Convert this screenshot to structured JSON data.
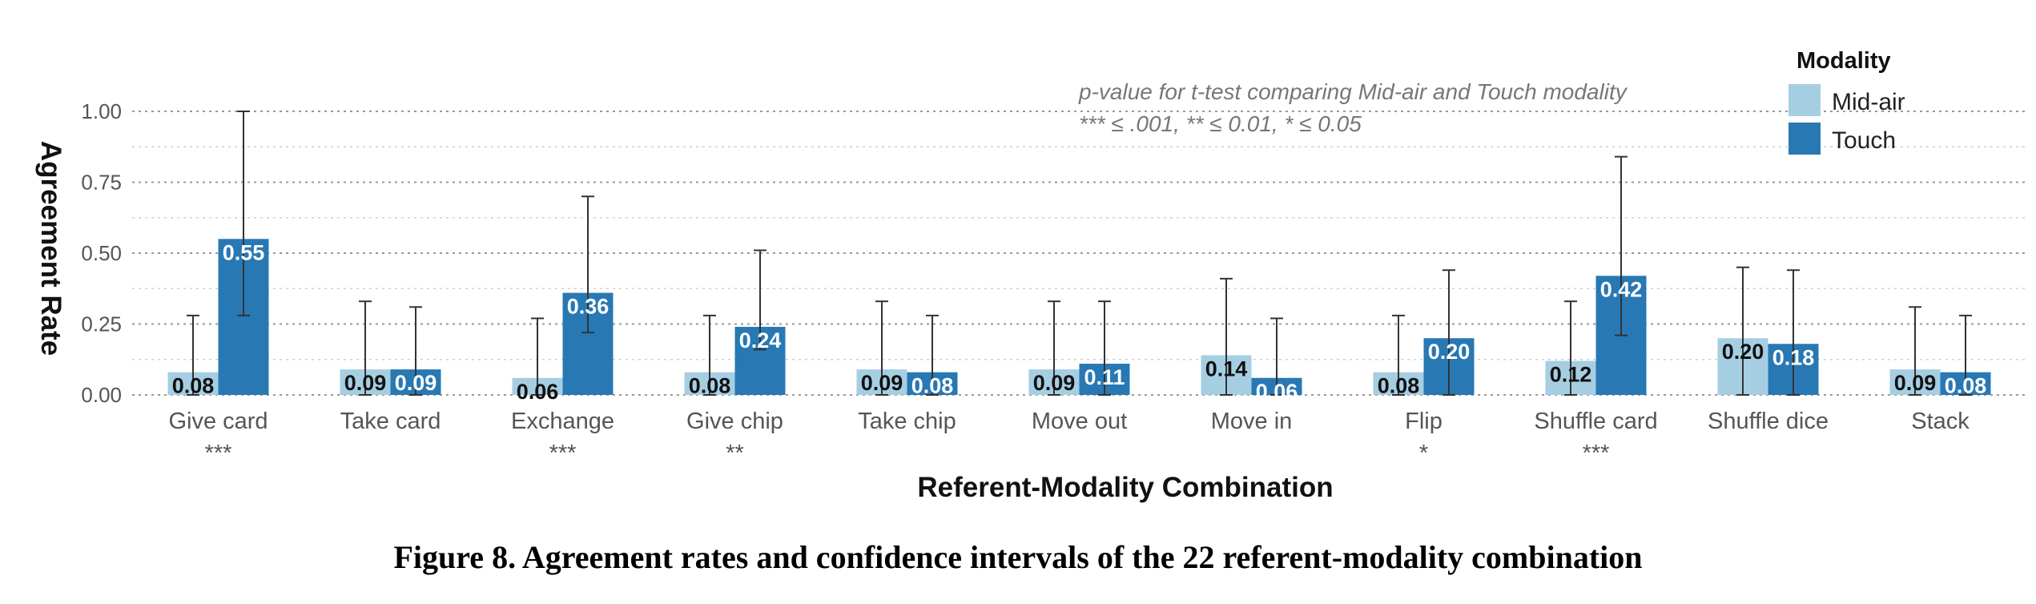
{
  "caption": "Figure 8. Agreement rates and confidence intervals of the 22 referent-modality combination",
  "chart_data": {
    "type": "bar",
    "xlabel": "Referent-Modality Combination",
    "ylabel": "Agreement Rate",
    "ylim": [
      0,
      1.05
    ],
    "yticks": [
      "0.00",
      "0.25",
      "0.50",
      "0.75",
      "1.00"
    ],
    "grid": true,
    "legend": {
      "title": "Modality",
      "placement": "top-right"
    },
    "categories": [
      "Give card",
      "Take card",
      "Exchange",
      "Give chip",
      "Take chip",
      "Move out",
      "Move in",
      "Flip",
      "Shuffle card",
      "Shuffle dice",
      "Stack"
    ],
    "significance": [
      "***",
      "",
      "***",
      "**",
      "",
      "",
      "",
      "*",
      "***",
      "",
      ""
    ],
    "series": [
      {
        "name": "Mid-air",
        "color": "#a6cee3",
        "values": [
          0.08,
          0.09,
          0.06,
          0.08,
          0.09,
          0.09,
          0.14,
          0.08,
          0.12,
          0.2,
          0.09
        ],
        "labels": [
          "0.08",
          "0.09",
          "0.06",
          "0.08",
          "0.09",
          "0.09",
          "0.14",
          "0.08",
          "0.12",
          "0.20",
          "0.09"
        ],
        "ci_low": [
          0.0,
          0.0,
          0.0,
          0.0,
          0.0,
          0.0,
          0.0,
          0.0,
          0.0,
          0.0,
          0.0
        ],
        "ci_high": [
          0.28,
          0.33,
          0.27,
          0.28,
          0.33,
          0.33,
          0.41,
          0.28,
          0.33,
          0.45,
          0.31
        ]
      },
      {
        "name": "Touch",
        "color": "#2878b4",
        "values": [
          0.55,
          0.09,
          0.36,
          0.24,
          0.08,
          0.11,
          0.06,
          0.2,
          0.42,
          0.18,
          0.08
        ],
        "labels": [
          "0.55",
          "0.09",
          "0.36",
          "0.24",
          "0.08",
          "0.11",
          "0.06",
          "0.20",
          "0.42",
          "0.18",
          "0.08"
        ],
        "ci_low": [
          0.28,
          0.0,
          0.22,
          0.16,
          0.0,
          0.0,
          0.0,
          0.0,
          0.21,
          0.0,
          0.0
        ],
        "ci_high": [
          1.0,
          0.31,
          0.7,
          0.51,
          0.28,
          0.33,
          0.27,
          0.44,
          0.84,
          0.44,
          0.28
        ]
      }
    ],
    "annotations": [
      "p-value for t-test comparing Mid-air and Touch modality",
      "*** ≤ .001, ** ≤ 0.01, * ≤ 0.05"
    ]
  }
}
